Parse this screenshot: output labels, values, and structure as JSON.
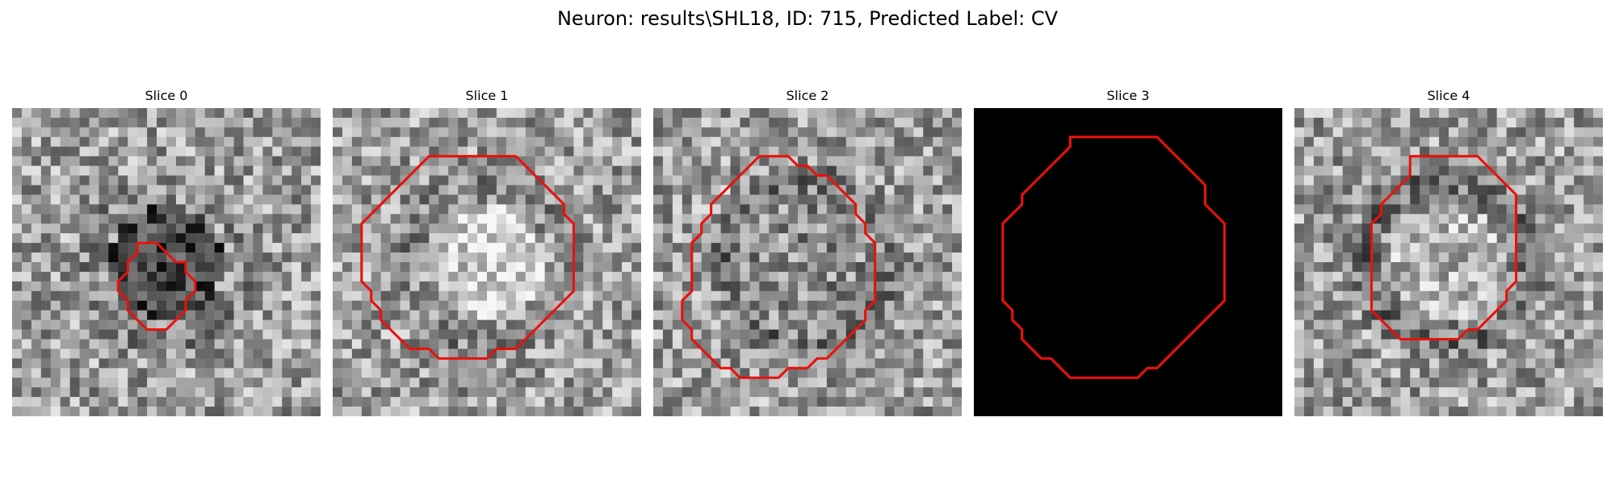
{
  "figure": {
    "title": "Neuron: results\\SHL18, ID: 715, Predicted Label: CV",
    "outline_color": "#e8120c",
    "colormap": "gray"
  },
  "panels": [
    {
      "title": "Slice 0",
      "image": "noisy-grayscale-texture",
      "seed": 17,
      "ring": 0.1,
      "center": 0.26,
      "contour": [
        [
          14,
          14
        ],
        [
          15,
          14
        ],
        [
          16,
          15
        ],
        [
          17,
          16
        ],
        [
          18,
          16
        ],
        [
          18,
          17
        ],
        [
          19,
          18
        ],
        [
          19,
          19
        ],
        [
          18,
          20
        ],
        [
          18,
          21
        ],
        [
          17,
          22
        ],
        [
          16,
          23
        ],
        [
          15,
          23
        ],
        [
          14,
          23
        ],
        [
          13,
          22
        ],
        [
          12,
          21
        ],
        [
          12,
          20
        ],
        [
          11,
          19
        ],
        [
          11,
          18
        ],
        [
          12,
          17
        ],
        [
          12,
          16
        ],
        [
          13,
          15
        ],
        [
          13,
          14
        ]
      ]
    },
    {
      "title": "Slice 1",
      "image": "noisy-grayscale-texture",
      "seed": 42,
      "ring": 0.12,
      "center": 0.82,
      "contour": [
        [
          11,
          5
        ],
        [
          19,
          5
        ],
        [
          20,
          6
        ],
        [
          21,
          7
        ],
        [
          22,
          8
        ],
        [
          23,
          9
        ],
        [
          24,
          10
        ],
        [
          24,
          11
        ],
        [
          25,
          12
        ],
        [
          25,
          19
        ],
        [
          24,
          20
        ],
        [
          23,
          21
        ],
        [
          22,
          22
        ],
        [
          21,
          23
        ],
        [
          20,
          24
        ],
        [
          19,
          25
        ],
        [
          17,
          25
        ],
        [
          16,
          26
        ],
        [
          12,
          26
        ],
        [
          11,
          26
        ],
        [
          10,
          25
        ],
        [
          8,
          25
        ],
        [
          7,
          24
        ],
        [
          6,
          23
        ],
        [
          5,
          22
        ],
        [
          5,
          21
        ],
        [
          4,
          20
        ],
        [
          4,
          19
        ],
        [
          3,
          18
        ],
        [
          3,
          12
        ],
        [
          4,
          11
        ],
        [
          5,
          10
        ],
        [
          6,
          9
        ],
        [
          7,
          8
        ],
        [
          8,
          7
        ],
        [
          9,
          6
        ],
        [
          10,
          5
        ]
      ]
    },
    {
      "title": "Slice 2",
      "image": "noisy-grayscale-texture",
      "seed": 91,
      "ring": 0.18,
      "center": 0.55,
      "contour": [
        [
          11,
          5
        ],
        [
          14,
          5
        ],
        [
          15,
          6
        ],
        [
          16,
          6
        ],
        [
          17,
          7
        ],
        [
          18,
          7
        ],
        [
          19,
          8
        ],
        [
          20,
          9
        ],
        [
          21,
          10
        ],
        [
          21,
          11
        ],
        [
          22,
          12
        ],
        [
          22,
          13
        ],
        [
          23,
          14
        ],
        [
          23,
          20
        ],
        [
          22,
          21
        ],
        [
          22,
          22
        ],
        [
          21,
          23
        ],
        [
          20,
          24
        ],
        [
          19,
          25
        ],
        [
          18,
          26
        ],
        [
          17,
          26
        ],
        [
          16,
          27
        ],
        [
          14,
          27
        ],
        [
          13,
          28
        ],
        [
          9,
          28
        ],
        [
          8,
          27
        ],
        [
          7,
          27
        ],
        [
          6,
          26
        ],
        [
          5,
          25
        ],
        [
          4,
          24
        ],
        [
          4,
          23
        ],
        [
          3,
          22
        ],
        [
          3,
          20
        ],
        [
          4,
          19
        ],
        [
          4,
          14
        ],
        [
          5,
          13
        ],
        [
          5,
          12
        ],
        [
          6,
          11
        ],
        [
          6,
          10
        ],
        [
          7,
          9
        ],
        [
          8,
          8
        ],
        [
          9,
          7
        ],
        [
          10,
          6
        ],
        [
          11,
          5
        ]
      ]
    },
    {
      "title": "Slice 3",
      "image": "black",
      "contour": [
        [
          10,
          3
        ],
        [
          19,
          3
        ],
        [
          20,
          4
        ],
        [
          21,
          5
        ],
        [
          22,
          6
        ],
        [
          23,
          7
        ],
        [
          24,
          8
        ],
        [
          24,
          10
        ],
        [
          25,
          11
        ],
        [
          26,
          12
        ],
        [
          26,
          20
        ],
        [
          25,
          21
        ],
        [
          24,
          22
        ],
        [
          23,
          23
        ],
        [
          22,
          24
        ],
        [
          21,
          25
        ],
        [
          20,
          26
        ],
        [
          19,
          27
        ],
        [
          18,
          27
        ],
        [
          17,
          28
        ],
        [
          10,
          28
        ],
        [
          9,
          27
        ],
        [
          8,
          26
        ],
        [
          7,
          26
        ],
        [
          6,
          25
        ],
        [
          5,
          24
        ],
        [
          5,
          23
        ],
        [
          4,
          22
        ],
        [
          4,
          21
        ],
        [
          3,
          20
        ],
        [
          3,
          12
        ],
        [
          4,
          11
        ],
        [
          5,
          10
        ],
        [
          5,
          9
        ],
        [
          6,
          8
        ],
        [
          7,
          7
        ],
        [
          8,
          6
        ],
        [
          9,
          5
        ],
        [
          10,
          4
        ]
      ]
    },
    {
      "title": "Slice 4",
      "image": "noisy-grayscale-texture",
      "seed": 63,
      "ring": 0.2,
      "center": 0.72,
      "contour": [
        [
          12,
          5
        ],
        [
          19,
          5
        ],
        [
          20,
          6
        ],
        [
          21,
          7
        ],
        [
          22,
          8
        ],
        [
          23,
          9
        ],
        [
          23,
          18
        ],
        [
          22,
          19
        ],
        [
          22,
          20
        ],
        [
          21,
          21
        ],
        [
          20,
          22
        ],
        [
          19,
          23
        ],
        [
          18,
          23
        ],
        [
          17,
          24
        ],
        [
          11,
          24
        ],
        [
          10,
          23
        ],
        [
          9,
          22
        ],
        [
          8,
          21
        ],
        [
          8,
          12
        ],
        [
          9,
          11
        ],
        [
          9,
          10
        ],
        [
          10,
          9
        ],
        [
          11,
          8
        ],
        [
          12,
          7
        ],
        [
          12,
          6
        ]
      ]
    }
  ]
}
